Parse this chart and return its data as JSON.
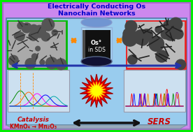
{
  "title_line1": "Electrically Conducting Os",
  "title_line2": "Nanochain Networks",
  "title_color": "#0000cc",
  "title_fontsize": 6.8,
  "bg_outer": "#00ee00",
  "bg_purple": "#cc88ee",
  "bg_blue_inner": "#99ccee",
  "bg_bottom_trap": "#99aabb",
  "left_image_border": "#00bb00",
  "right_image_border": "#ee2222",
  "cylinder_label1": "Os°",
  "cylinder_label2": "in SDS",
  "catalysis_label": "Catalysis",
  "reaction_label": "KMnO₄ → Mn₂O₃",
  "sers_label": "SERS",
  "label_color": "#cc0000",
  "orange_arrow_color": "#ff8800",
  "black_arrow_color": "#111111",
  "blue_arrow_color": "#2233aa",
  "explosion_red": "#ee0000",
  "explosion_yellow": "#ffff00",
  "graph_bg": "#cce0f0",
  "cylinder_body": "#334488",
  "cylinder_top": "#6688cc",
  "cylinder_dark": "#111133",
  "cylinder_glass": "#aaccee"
}
